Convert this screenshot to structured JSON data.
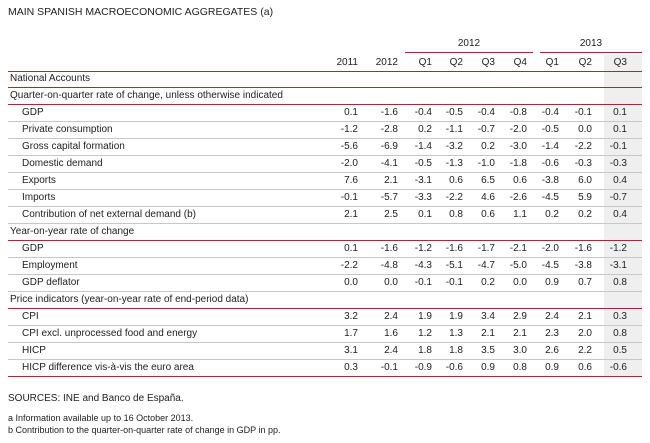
{
  "title": "MAIN SPANISH MACROECONOMIC AGGREGATES",
  "title_note": "(a)",
  "table": {
    "group_headers": [
      "2012",
      "2013"
    ],
    "columns": [
      "2011",
      "2012",
      "Q1",
      "Q2",
      "Q3",
      "Q4",
      "Q1",
      "Q2",
      "Q3"
    ],
    "rows": [
      {
        "label": "National Accounts"
      },
      {
        "label": "Quarter-on-quarter rate of change, unless otherwise indicated"
      },
      {
        "label": "GDP",
        "values": [
          "0.1",
          "-1.6",
          "-0.4",
          "-0.5",
          "-0.4",
          "-0.8",
          "-0.4",
          "-0.1",
          "0.1"
        ]
      },
      {
        "label": "Private consumption",
        "values": [
          "-1.2",
          "-2.8",
          "0.2",
          "-1.1",
          "-0.7",
          "-2.0",
          "-0.5",
          "0.0",
          "0.1"
        ]
      },
      {
        "label": "Gross capital formation",
        "values": [
          "-5.6",
          "-6.9",
          "-1.4",
          "-3.2",
          "0.2",
          "-3.0",
          "-1.4",
          "-2.2",
          "-0.1"
        ]
      },
      {
        "label": "Domestic demand",
        "values": [
          "-2.0",
          "-4.1",
          "-0.5",
          "-1.3",
          "-1.0",
          "-1.8",
          "-0.6",
          "-0.3",
          "-0.3"
        ]
      },
      {
        "label": "Exports",
        "values": [
          "7.6",
          "2.1",
          "-3.1",
          "0.6",
          "6.5",
          "0.6",
          "-3.8",
          "6.0",
          "0.4"
        ]
      },
      {
        "label": "Imports",
        "values": [
          "-0.1",
          "-5.7",
          "-3.3",
          "-2.2",
          "4.6",
          "-2.6",
          "-4.5",
          "5.9",
          "-0.7"
        ]
      },
      {
        "label": "Contribution of net external demand (b)",
        "values": [
          "2.1",
          "2.5",
          "0.1",
          "0.8",
          "0.6",
          "1.1",
          "0.2",
          "0.2",
          "0.4"
        ]
      },
      {
        "label": "Year-on-year rate of change"
      },
      {
        "label": "GDP",
        "values": [
          "0.1",
          "-1.6",
          "-1.2",
          "-1.6",
          "-1.7",
          "-2.1",
          "-2.0",
          "-1.6",
          "-1.2"
        ]
      },
      {
        "label": "Employment",
        "values": [
          "-2.2",
          "-4.8",
          "-4.3",
          "-5.1",
          "-4.7",
          "-5.0",
          "-4.5",
          "-3.8",
          "-3.1"
        ]
      },
      {
        "label": "GDP deflator",
        "values": [
          "0.0",
          "0.0",
          "-0.1",
          "-0.1",
          "0.2",
          "0.0",
          "0.9",
          "0.7",
          "0.8"
        ]
      },
      {
        "label": "Price indicators (year-on-year rate of end-period data)"
      },
      {
        "label": "CPI",
        "values": [
          "3.2",
          "2.4",
          "1.9",
          "1.9",
          "3.4",
          "2.9",
          "2.4",
          "2.1",
          "0.3"
        ]
      },
      {
        "label": "CPI excl. unprocessed food and energy",
        "values": [
          "1.7",
          "1.6",
          "1.2",
          "1.3",
          "2.1",
          "2.1",
          "2.3",
          "2.0",
          "0.8"
        ]
      },
      {
        "label": "HICP",
        "values": [
          "3.1",
          "2.4",
          "1.8",
          "1.8",
          "3.5",
          "3.0",
          "2.6",
          "2.2",
          "0.5"
        ]
      },
      {
        "label": "HICP difference vis-à-vis the euro area",
        "values": [
          "0.3",
          "-0.1",
          "-0.9",
          "-0.6",
          "0.9",
          "0.8",
          "0.9",
          "0.6",
          "-0.6"
        ]
      }
    ]
  },
  "sources": "SOURCES: INE and Banco de España.",
  "notes": [
    "a  Information available up to 16 October 2013.",
    "b  Contribution to the quarter-on-quarter rate of change in GDP in pp."
  ]
}
